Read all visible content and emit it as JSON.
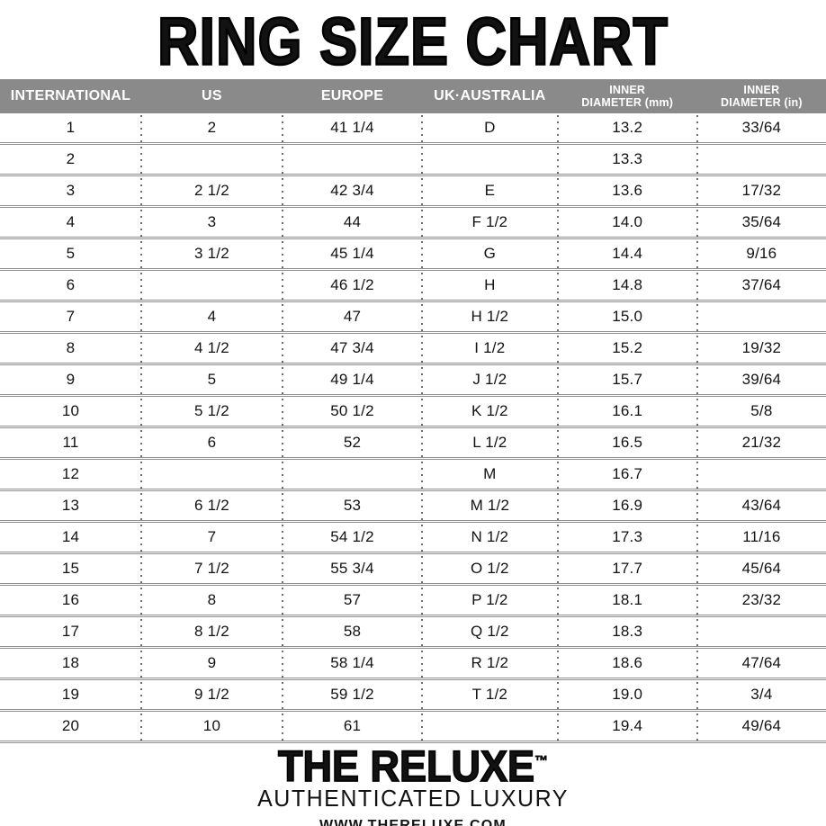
{
  "title": "RING SIZE CHART",
  "colors": {
    "header_bg": "#8a8a8a",
    "header_text": "#ffffff",
    "separator": "#8f8f8f",
    "dots": "#6f6f6f",
    "text": "#121212"
  },
  "table": {
    "columns": [
      {
        "key": "international",
        "line1": "INTERNATIONAL",
        "line2": ""
      },
      {
        "key": "us",
        "line1": "US",
        "line2": ""
      },
      {
        "key": "europe",
        "line1": "EUROPE",
        "line2": ""
      },
      {
        "key": "uk-australia",
        "line1": "UK·AUSTRALIA",
        "line2": ""
      },
      {
        "key": "inner-diameter-mm",
        "line1": "INNER",
        "line2": "DIAMETER (mm)"
      },
      {
        "key": "inner-diameter-in",
        "line1": "INNER",
        "line2": "DIAMETER (in)"
      }
    ],
    "rows": [
      [
        "1",
        "2",
        "41 1/4",
        "D",
        "13.2",
        "33/64"
      ],
      [
        "2",
        "",
        "",
        "",
        "13.3",
        ""
      ],
      [
        "3",
        "2 1/2",
        "42 3/4",
        "E",
        "13.6",
        "17/32"
      ],
      [
        "4",
        "3",
        "44",
        "F 1/2",
        "14.0",
        "35/64"
      ],
      [
        "5",
        "3 1/2",
        "45 1/4",
        "G",
        "14.4",
        "9/16"
      ],
      [
        "6",
        "",
        "46 1/2",
        "H",
        "14.8",
        "37/64"
      ],
      [
        "7",
        "4",
        "47",
        "H 1/2",
        "15.0",
        ""
      ],
      [
        "8",
        "4 1/2",
        "47 3/4",
        "I 1/2",
        "15.2",
        "19/32"
      ],
      [
        "9",
        "5",
        "49 1/4",
        "J 1/2",
        "15.7",
        "39/64"
      ],
      [
        "10",
        "5 1/2",
        "50 1/2",
        "K 1/2",
        "16.1",
        "5/8"
      ],
      [
        "11",
        "6",
        "52",
        "L 1/2",
        "16.5",
        "21/32"
      ],
      [
        "12",
        "",
        "",
        "M",
        "16.7",
        ""
      ],
      [
        "13",
        "6 1/2",
        "53",
        "M 1/2",
        "16.9",
        "43/64"
      ],
      [
        "14",
        "7",
        "54 1/2",
        "N 1/2",
        "17.3",
        "11/16"
      ],
      [
        "15",
        "7 1/2",
        "55 3/4",
        "O 1/2",
        "17.7",
        "45/64"
      ],
      [
        "16",
        "8",
        "57",
        "P 1/2",
        "18.1",
        "23/32"
      ],
      [
        "17",
        "8 1/2",
        "58",
        "Q 1/2",
        "18.3",
        ""
      ],
      [
        "18",
        "9",
        "58 1/4",
        "R 1/2",
        "18.6",
        "47/64"
      ],
      [
        "19",
        "9 1/2",
        "59 1/2",
        "T 1/2",
        "19.0",
        "3/4"
      ],
      [
        "20",
        "10",
        "61",
        "",
        "19.4",
        "49/64"
      ]
    ]
  },
  "footer": {
    "brand": "THE RELUXE",
    "trademark": "™",
    "tagline": "AUTHENTICATED LUXURY",
    "website": "WWW.THERELUXE.COM"
  }
}
